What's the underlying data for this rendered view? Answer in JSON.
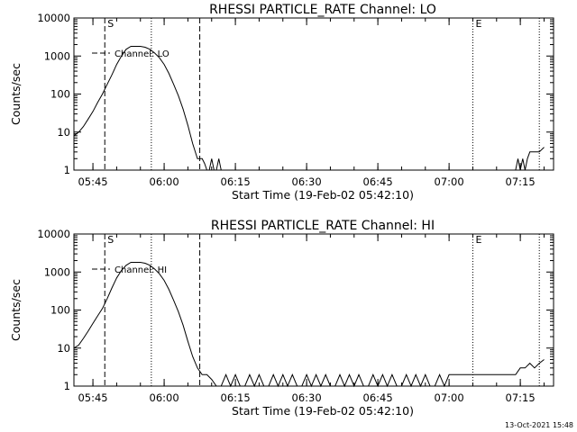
{
  "footer": {
    "timestamp": "13-Oct-2021 15:48"
  },
  "chart_data": [
    {
      "type": "line",
      "title": "RHESSI PARTICLE_RATE Channel: LO",
      "xlabel": "Start Time (19-Feb-02 05:42:10)",
      "ylabel": "Counts/sec",
      "y_scale": "log",
      "xlim": [
        "05:41",
        "07:22"
      ],
      "ylim": [
        1,
        10000
      ],
      "x_ticks": [
        "05:45",
        "06:00",
        "06:15",
        "06:30",
        "06:45",
        "07:00",
        "07:15"
      ],
      "y_ticks": [
        "1",
        "10",
        "100",
        "1000",
        "10000"
      ],
      "legend": "Channel: LO",
      "legend_placement": "top-left",
      "markers": {
        "start_label": "S",
        "end_label": "E"
      },
      "series": [
        {
          "name": "Channel: LO",
          "x": [
            "05:41",
            "05:42",
            "05:43",
            "05:44",
            "05:45",
            "05:46",
            "05:47",
            "05:48",
            "05:49",
            "05:50",
            "05:51",
            "05:52",
            "05:53",
            "05:54",
            "05:55",
            "05:56",
            "05:57",
            "05:58",
            "05:59",
            "06:00",
            "06:01",
            "06:02",
            "06:03",
            "06:04",
            "06:05",
            "06:06",
            "06:07",
            "06:08",
            "06:08.5",
            "06:09",
            "06:09.5",
            "06:10",
            "06:10.5",
            "06:11",
            "06:11.5",
            "06:12",
            "07:14",
            "07:14.5",
            "07:15",
            "07:15.5",
            "07:16",
            "07:16.5",
            "07:17",
            "07:18",
            "07:19",
            "07:20"
          ],
          "values": [
            8,
            10,
            14,
            22,
            35,
            60,
            100,
            180,
            320,
            600,
            1000,
            1500,
            1800,
            1800,
            1800,
            1700,
            1500,
            1200,
            900,
            600,
            350,
            180,
            90,
            40,
            15,
            5,
            2,
            2,
            1.5,
            1,
            1,
            2,
            1,
            1,
            2,
            1,
            1,
            2,
            1,
            2,
            1,
            2,
            3,
            3,
            3,
            4
          ]
        }
      ],
      "vlines": [
        {
          "x": "05:47.5",
          "style": "dashed",
          "label": "S"
        },
        {
          "x": "05:57.3",
          "style": "dotted"
        },
        {
          "x": "06:07.5",
          "style": "dashed"
        },
        {
          "x": "07:05",
          "style": "dotted",
          "label": "E"
        },
        {
          "x": "07:19",
          "style": "dotted"
        }
      ]
    },
    {
      "type": "line",
      "title": "RHESSI PARTICLE_RATE Channel: HI",
      "xlabel": "Start Time (19-Feb-02 05:42:10)",
      "ylabel": "Counts/sec",
      "y_scale": "log",
      "xlim": [
        "05:41",
        "07:22"
      ],
      "ylim": [
        1,
        10000
      ],
      "x_ticks": [
        "05:45",
        "06:00",
        "06:15",
        "06:30",
        "06:45",
        "07:00",
        "07:15"
      ],
      "y_ticks": [
        "1",
        "10",
        "100",
        "1000",
        "10000"
      ],
      "legend": "Channel: HI",
      "legend_placement": "top-left",
      "markers": {
        "start_label": "S",
        "end_label": "E"
      },
      "series": [
        {
          "name": "Channel: HI",
          "x": [
            "05:41",
            "05:42",
            "05:43",
            "05:44",
            "05:45",
            "05:46",
            "05:47",
            "05:48",
            "05:49",
            "05:50",
            "05:51",
            "05:52",
            "05:53",
            "05:54",
            "05:55",
            "05:56",
            "05:57",
            "05:58",
            "05:59",
            "06:00",
            "06:01",
            "06:02",
            "06:03",
            "06:04",
            "06:05",
            "06:06",
            "06:07",
            "06:08",
            "06:09",
            "06:10",
            "06:11",
            "06:12",
            "06:13",
            "06:14",
            "06:15",
            "06:16",
            "06:17",
            "06:18",
            "06:19",
            "06:20",
            "06:21",
            "06:22",
            "06:23",
            "06:24",
            "06:25",
            "06:26",
            "06:27",
            "06:28",
            "06:29",
            "06:30",
            "06:31",
            "06:32",
            "06:33",
            "06:34",
            "06:35",
            "06:36",
            "06:37",
            "06:38",
            "06:39",
            "06:40",
            "06:41",
            "06:42",
            "06:43",
            "06:44",
            "06:45",
            "06:46",
            "06:47",
            "06:48",
            "06:49",
            "06:50",
            "06:51",
            "06:52",
            "06:53",
            "06:54",
            "06:55",
            "06:56",
            "06:57",
            "06:58",
            "06:59",
            "07:00",
            "07:01",
            "07:02",
            "07:03",
            "07:04",
            "07:05",
            "07:06",
            "07:07",
            "07:08",
            "07:09",
            "07:10",
            "07:11",
            "07:12",
            "07:13",
            "07:14",
            "07:15",
            "07:16",
            "07:17",
            "07:18",
            "07:19",
            "07:20"
          ],
          "values": [
            10,
            12,
            18,
            28,
            45,
            70,
            110,
            200,
            380,
            700,
            1100,
            1500,
            1800,
            1800,
            1800,
            1700,
            1500,
            1200,
            900,
            600,
            350,
            180,
            90,
            40,
            15,
            6,
            3,
            2,
            2,
            1.5,
            1,
            1,
            2,
            1,
            2,
            1,
            1,
            2,
            1,
            2,
            1,
            1,
            2,
            1,
            2,
            1,
            2,
            1,
            1,
            2,
            1,
            2,
            1,
            2,
            1,
            1,
            2,
            1,
            2,
            1,
            2,
            1,
            1,
            2,
            1,
            2,
            1,
            2,
            1,
            1,
            2,
            1,
            2,
            1,
            2,
            1,
            1,
            2,
            1,
            2,
            2,
            2,
            2,
            2,
            2,
            2,
            2,
            2,
            2,
            2,
            2,
            2,
            2,
            2,
            3,
            3,
            4,
            3,
            4,
            5
          ]
        }
      ],
      "vlines": [
        {
          "x": "05:47.5",
          "style": "dashed",
          "label": "S"
        },
        {
          "x": "05:57.3",
          "style": "dotted"
        },
        {
          "x": "06:07.5",
          "style": "dashed"
        },
        {
          "x": "07:05",
          "style": "dotted",
          "label": "E"
        },
        {
          "x": "07:19",
          "style": "dotted"
        }
      ]
    }
  ]
}
